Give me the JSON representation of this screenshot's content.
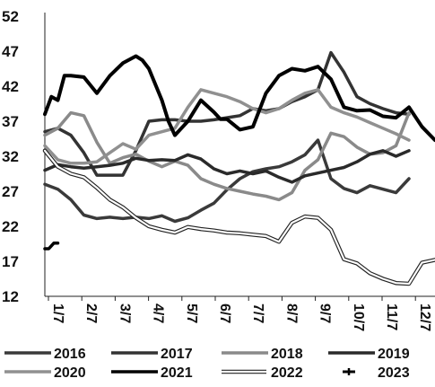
{
  "chart_data": {
    "type": "line",
    "title": "",
    "xlabel": "",
    "ylabel": "",
    "ylim": [
      12,
      52
    ],
    "y_ticks": [
      "52",
      "47",
      "42",
      "37",
      "32",
      "27",
      "22",
      "17",
      "12"
    ],
    "x_ticks": [
      "1/7",
      "2/7",
      "3/7",
      "4/7",
      "5/7",
      "6/7",
      "7/7",
      "8/7",
      "9/7",
      "10/7",
      "11/7",
      "12/7"
    ],
    "x_unit": "week of year",
    "grid": "none",
    "legend_position": "bottom",
    "series": [
      {
        "name": "2016",
        "color": "#3a3a3a",
        "x": [
          1,
          3,
          5,
          7,
          9,
          11,
          13,
          15,
          17,
          19,
          21,
          23,
          25,
          27,
          29,
          31,
          33,
          35,
          37,
          39,
          41,
          43,
          45,
          47,
          49,
          51,
          53,
          55,
          57
        ],
        "y": [
          28,
          27.3,
          25.8,
          23.6,
          23.1,
          23.3,
          23.1,
          23.3,
          23.1,
          23.5,
          22.7,
          23.2,
          24.3,
          25.3,
          27.2,
          28.8,
          29.8,
          30.2,
          30.5,
          31.2,
          32.2,
          34.3,
          28.8,
          27.4,
          26.8,
          27.8,
          27.3,
          26.8,
          28.8
        ]
      },
      {
        "name": "2017",
        "color": "#333333",
        "x": [
          1,
          3,
          5,
          7,
          9,
          11,
          13,
          15,
          17,
          19,
          21,
          23,
          25,
          27,
          29,
          31,
          33,
          35,
          37,
          39,
          41,
          43,
          45,
          47,
          49,
          51,
          53,
          55,
          57
        ],
        "y": [
          35.5,
          36,
          35,
          32.5,
          29.3,
          29.3,
          29.3,
          32.8,
          37,
          37.2,
          37.2,
          37,
          37,
          37.2,
          37.5,
          37.8,
          38.8,
          38.5,
          38.8,
          39.8,
          40.5,
          41.5,
          46.8,
          44,
          40.5,
          39.5,
          38.8,
          38.2,
          38
        ]
      },
      {
        "name": "2018",
        "color": "#8a8a8a",
        "x": [
          1,
          3,
          5,
          7,
          9,
          11,
          13,
          15,
          17,
          19,
          21,
          23,
          25,
          27,
          29,
          31,
          33,
          35,
          37,
          39,
          41,
          43,
          45,
          47,
          49,
          51,
          53,
          55,
          57
        ],
        "y": [
          35,
          36,
          38.2,
          37.8,
          34,
          31,
          31.8,
          32.3,
          31.3,
          30.5,
          31.3,
          30.7,
          28.8,
          28,
          27.4,
          27,
          26.6,
          26.3,
          25.8,
          26.8,
          30,
          31.5,
          35.3,
          34.8,
          33.3,
          32.3,
          32.5,
          33.5,
          38.2
        ]
      },
      {
        "name": "2019",
        "color": "#2a2a2a",
        "x": [
          1,
          3,
          5,
          7,
          9,
          11,
          13,
          15,
          17,
          19,
          21,
          23,
          25,
          27,
          29,
          31,
          33,
          35,
          37,
          39,
          41,
          43,
          45,
          47,
          49,
          51,
          53,
          55,
          57
        ],
        "y": [
          30,
          30.8,
          30.5,
          30.3,
          30.5,
          30.7,
          31,
          31.7,
          31.4,
          31.5,
          31.4,
          32.2,
          31.6,
          30.2,
          29.5,
          29.9,
          29.5,
          29.9,
          29,
          28.3,
          29.2,
          29.6,
          30,
          30.4,
          31.2,
          32.3,
          32.8,
          32,
          32.8
        ]
      },
      {
        "name": "2020",
        "color": "#909090",
        "x": [
          1,
          3,
          5,
          7,
          9,
          11,
          13,
          15,
          17,
          19,
          21,
          23,
          25,
          27,
          29,
          31,
          33,
          35,
          37,
          39,
          41,
          43,
          45,
          47,
          49,
          51,
          53,
          55,
          57
        ],
        "y": [
          33.5,
          31.5,
          31,
          31,
          31.2,
          32.5,
          33.8,
          33,
          35,
          35.5,
          36,
          39,
          41.5,
          41,
          40.5,
          39.8,
          38.8,
          38.2,
          38.8,
          40,
          41,
          41.5,
          39,
          38.2,
          37.6,
          36.8,
          36,
          35.2,
          34.3
        ]
      },
      {
        "name": "2021",
        "color": "#000000",
        "x": [
          1,
          2,
          3,
          4,
          5,
          7,
          9,
          11,
          13,
          15,
          16,
          17,
          19,
          20,
          21,
          23,
          25,
          27,
          28,
          29,
          31,
          33,
          35,
          37,
          39,
          41,
          43,
          45,
          47,
          49,
          51,
          53,
          55,
          57,
          59,
          61
        ],
        "y": [
          38,
          40.5,
          40,
          43.5,
          43.5,
          43.3,
          41,
          43.5,
          45.3,
          46.3,
          45.7,
          44.5,
          40,
          37,
          35,
          37,
          40,
          38.3,
          37.3,
          37.3,
          35.8,
          36.2,
          41,
          43.5,
          44.5,
          44.2,
          44.8,
          43,
          39,
          38.5,
          38.6,
          37.7,
          37.5,
          39,
          36.2,
          34.3
        ]
      },
      {
        "name": "2022",
        "color": "#ffffff",
        "outline": true,
        "x": [
          1,
          3,
          5,
          7,
          9,
          11,
          13,
          15,
          17,
          19,
          21,
          23,
          25,
          27,
          29,
          31,
          33,
          35,
          37,
          39,
          41,
          43,
          45,
          47,
          49,
          51,
          53,
          55,
          57,
          59,
          61
        ],
        "y": [
          32.8,
          30.5,
          29.5,
          29,
          27.5,
          25.8,
          24.7,
          23.2,
          22,
          21.5,
          21.1,
          21.9,
          21.6,
          21.4,
          21.1,
          21,
          20.8,
          20.6,
          19.8,
          22.5,
          23.4,
          23.2,
          21.5,
          17.3,
          16.7,
          15.3,
          14.5,
          13.9,
          13.8,
          16.8,
          17.2
        ]
      },
      {
        "name": "2023",
        "color": "#000000",
        "x": [
          1,
          1.6,
          2.4,
          3
        ],
        "y": [
          18.8,
          18.8,
          19.6,
          19.6
        ]
      }
    ]
  }
}
